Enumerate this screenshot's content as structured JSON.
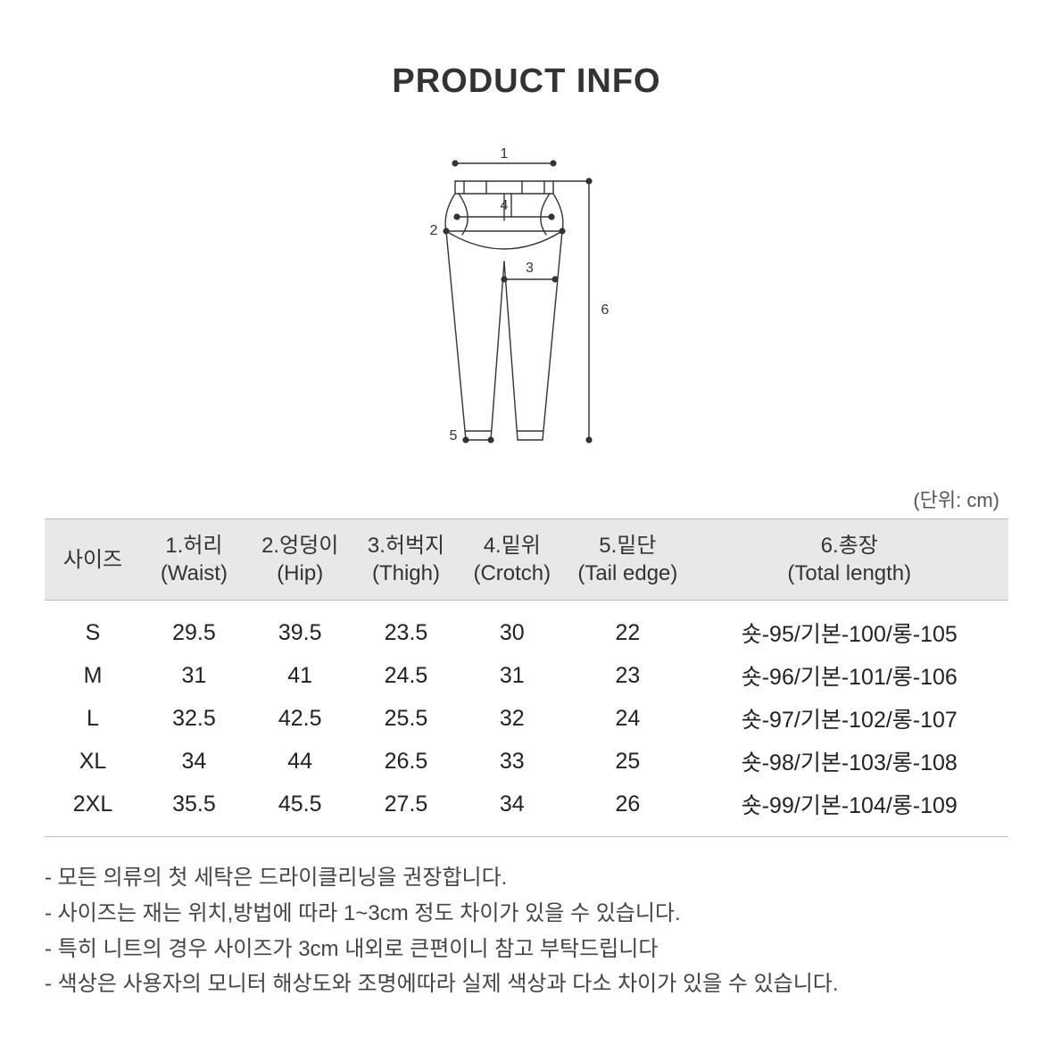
{
  "title": "PRODUCT INFO",
  "unit_label": "(단위: cm)",
  "diagram": {
    "labels": {
      "l1": "1",
      "l2": "2",
      "l3": "3",
      "l4": "4",
      "l5": "5",
      "l6": "6"
    },
    "stroke": "#333333",
    "stroke_width": 1.4,
    "dot_radius": 3.6
  },
  "table": {
    "header_bg": "#e8e8e8",
    "border_color": "#bdbdbd",
    "columns": [
      {
        "key": "size",
        "kr": "사이즈",
        "en": ""
      },
      {
        "key": "waist",
        "kr": "1.허리",
        "en": "(Waist)"
      },
      {
        "key": "hip",
        "kr": "2.엉덩이",
        "en": "(Hip)"
      },
      {
        "key": "thigh",
        "kr": "3.허벅지",
        "en": "(Thigh)"
      },
      {
        "key": "crotch",
        "kr": "4.밑위",
        "en": "(Crotch)"
      },
      {
        "key": "tail",
        "kr": "5.밑단",
        "en": "(Tail edge)"
      },
      {
        "key": "total",
        "kr": "6.총장",
        "en": "(Total length)"
      }
    ],
    "rows": [
      {
        "size": "S",
        "waist": "29.5",
        "hip": "39.5",
        "thigh": "23.5",
        "crotch": "30",
        "tail": "22",
        "total": "숏-95/기본-100/롱-105"
      },
      {
        "size": "M",
        "waist": "31",
        "hip": "41",
        "thigh": "24.5",
        "crotch": "31",
        "tail": "23",
        "total": "숏-96/기본-101/롱-106"
      },
      {
        "size": "L",
        "waist": "32.5",
        "hip": "42.5",
        "thigh": "25.5",
        "crotch": "32",
        "tail": "24",
        "total": "숏-97/기본-102/롱-107"
      },
      {
        "size": "XL",
        "waist": "34",
        "hip": "44",
        "thigh": "26.5",
        "crotch": "33",
        "tail": "25",
        "total": "숏-98/기본-103/롱-108"
      },
      {
        "size": "2XL",
        "waist": "35.5",
        "hip": "45.5",
        "thigh": "27.5",
        "crotch": "34",
        "tail": "26",
        "total": "숏-99/기본-104/롱-109"
      }
    ]
  },
  "notes": [
    "- 모든 의류의 첫 세탁은 드라이클리닝을 권장합니다.",
    "- 사이즈는 재는 위치,방법에 따라 1~3cm 정도 차이가 있을 수 있습니다.",
    "- 특히 니트의 경우 사이즈가 3cm 내외로 큰편이니 참고 부탁드립니다",
    "- 색상은 사용자의 모니터 해상도와 조명에따라 실제 색상과 다소 차이가 있을 수 있습니다."
  ]
}
